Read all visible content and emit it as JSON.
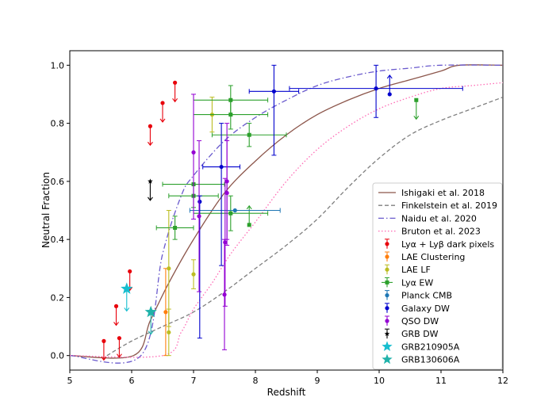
{
  "chart_data": {
    "type": "scatter",
    "title": "",
    "xlabel": "Redshift",
    "ylabel": "Neutral Fraction",
    "xlim": [
      5,
      12
    ],
    "ylim": [
      -0.05,
      1.05
    ],
    "xticks": [
      "5",
      "6",
      "7",
      "8",
      "9",
      "10",
      "11",
      "12"
    ],
    "yticks": [
      "0.0",
      "0.2",
      "0.4",
      "0.6",
      "0.8",
      "1.0"
    ],
    "grid": false,
    "legend_position": "lower-right",
    "model_lines": [
      {
        "name": "Ishigaki et al. 2018",
        "color": "#8c564b",
        "dash": "solid",
        "points": [
          [
            5,
            0
          ],
          [
            6.03,
            0
          ],
          [
            6.3,
            0.12
          ],
          [
            6.6,
            0.25
          ],
          [
            7,
            0.4
          ],
          [
            7.5,
            0.56
          ],
          [
            8,
            0.67
          ],
          [
            8.5,
            0.76
          ],
          [
            9,
            0.83
          ],
          [
            9.5,
            0.88
          ],
          [
            10,
            0.92
          ],
          [
            10.5,
            0.95
          ],
          [
            11,
            0.98
          ],
          [
            11.3,
            1.0
          ],
          [
            12,
            1.0
          ]
        ]
      },
      {
        "name": "Finkelstein et al. 2019",
        "color": "#7f7f7f",
        "dash": "dashed",
        "points": [
          [
            5.6,
            0
          ],
          [
            6,
            0.05
          ],
          [
            6.5,
            0.1
          ],
          [
            7,
            0.15
          ],
          [
            7.5,
            0.22
          ],
          [
            8,
            0.3
          ],
          [
            8.5,
            0.38
          ],
          [
            9,
            0.47
          ],
          [
            9.5,
            0.58
          ],
          [
            10,
            0.68
          ],
          [
            10.5,
            0.76
          ],
          [
            11,
            0.81
          ],
          [
            11.5,
            0.85
          ],
          [
            12,
            0.89
          ]
        ]
      },
      {
        "name": "Naidu et al. 2020",
        "color": "#6a5acd",
        "dash": "dashdot",
        "points": [
          [
            5,
            0
          ],
          [
            6.15,
            0
          ],
          [
            6.5,
            0.35
          ],
          [
            6.8,
            0.55
          ],
          [
            7,
            0.62
          ],
          [
            7.5,
            0.74
          ],
          [
            8,
            0.82
          ],
          [
            8.5,
            0.88
          ],
          [
            9,
            0.93
          ],
          [
            9.5,
            0.96
          ],
          [
            10,
            0.98
          ],
          [
            10.5,
            0.99
          ],
          [
            11,
            1.0
          ],
          [
            12,
            1.0
          ]
        ]
      },
      {
        "name": "Bruton et al. 2023",
        "color": "#ff69b4",
        "dash": "dotted",
        "points": [
          [
            5,
            0
          ],
          [
            6.5,
            0
          ],
          [
            6.8,
            0.08
          ],
          [
            7,
            0.16
          ],
          [
            7.3,
            0.25
          ],
          [
            7.6,
            0.35
          ],
          [
            8,
            0.46
          ],
          [
            8.5,
            0.6
          ],
          [
            9,
            0.71
          ],
          [
            9.5,
            0.79
          ],
          [
            10,
            0.85
          ],
          [
            10.5,
            0.89
          ],
          [
            11,
            0.92
          ],
          [
            11.5,
            0.93
          ],
          [
            12,
            0.94
          ]
        ]
      }
    ],
    "series": [
      {
        "name": "Lyα + Lyβ dark pixels",
        "color": "#e8000b",
        "marker": "dot",
        "points": [
          {
            "x": 5.55,
            "y": 0.05,
            "upper": true
          },
          {
            "x": 5.75,
            "y": 0.17,
            "upper": true
          },
          {
            "x": 5.8,
            "y": 0.06,
            "upper": true
          },
          {
            "x": 5.97,
            "y": 0.29,
            "upper": true
          },
          {
            "x": 6.3,
            "y": 0.79,
            "upper": true
          },
          {
            "x": 6.5,
            "y": 0.87,
            "upper": true
          },
          {
            "x": 6.7,
            "y": 0.94,
            "upper": true
          }
        ]
      },
      {
        "name": "LAE Clustering",
        "color": "#ff7f0e",
        "marker": "dot",
        "points": [
          {
            "x": 6.55,
            "y": 0.15,
            "yerr": [
              0.15,
              0.15
            ]
          }
        ]
      },
      {
        "name": "LAE LF",
        "color": "#bcbd22",
        "marker": "dot",
        "points": [
          {
            "x": 6.6,
            "y": 0.08,
            "yerr": [
              0.08,
              0.08
            ]
          },
          {
            "x": 6.6,
            "y": 0.3,
            "yerr": [
              0.2,
              0.2
            ]
          },
          {
            "x": 7.0,
            "y": 0.28,
            "yerr": [
              0.05,
              0.05
            ]
          },
          {
            "x": 7.3,
            "y": 0.83,
            "yerr": [
              0.06,
              0.06
            ]
          }
        ]
      },
      {
        "name": "Lyα EW",
        "color": "#2ca02c",
        "marker": "square",
        "points": [
          {
            "x": 6.7,
            "y": 0.44,
            "xerr": [
              0.3,
              0.3
            ],
            "yerr": [
              0.04,
              0.04
            ]
          },
          {
            "x": 7.0,
            "y": 0.55,
            "xerr": [
              0.4,
              0.4
            ],
            "yerr": [
              0.04,
              0.04
            ]
          },
          {
            "x": 7.0,
            "y": 0.59,
            "xerr": [
              0.5,
              0.5
            ]
          },
          {
            "x": 7.6,
            "y": 0.49,
            "xerr": [
              0.6,
              0.6
            ],
            "yerr": [
              0.06,
              0.06
            ]
          },
          {
            "x": 7.6,
            "y": 0.83,
            "xerr": [
              0.6,
              0.6
            ],
            "yerr": [
              0.05,
              0.05
            ]
          },
          {
            "x": 7.6,
            "y": 0.88,
            "xerr": [
              0.6,
              0.6
            ],
            "yerr": [
              0.05,
              0.05
            ]
          },
          {
            "x": 7.9,
            "y": 0.76,
            "xerr": [
              0.6,
              0.6
            ],
            "yerr": [
              0.04,
              0.04
            ]
          },
          {
            "x": 7.9,
            "y": 0.45,
            "lower": true
          },
          {
            "x": 10.6,
            "y": 0.88,
            "upper": true
          }
        ]
      },
      {
        "name": "Planck CMB",
        "color": "#1f77b4",
        "marker": "dot",
        "points": [
          {
            "x": 7.67,
            "y": 0.5,
            "xerr": [
              0.73,
              0.73
            ]
          }
        ]
      },
      {
        "name": "Galaxy DW",
        "color": "#0000cd",
        "marker": "dot",
        "points": [
          {
            "x": 7.1,
            "y": 0.53,
            "yerr": [
              0.47,
              0.02
            ]
          },
          {
            "x": 7.45,
            "y": 0.65,
            "xerr": [
              0.3,
              0.3
            ],
            "yerr": [
              0.34,
              0.15
            ]
          },
          {
            "x": 8.3,
            "y": 0.91,
            "xerr": [
              0.4,
              0.4
            ],
            "yerr": [
              0.22,
              0.09
            ]
          },
          {
            "x": 9.95,
            "y": 0.92,
            "xerr": [
              1.4,
              1.4
            ],
            "yerr": [
              0.1,
              0.08
            ]
          },
          {
            "x": 10.17,
            "y": 0.9,
            "lower": true
          }
        ]
      },
      {
        "name": "QSO DW",
        "color": "#9400d3",
        "marker": "dot",
        "points": [
          {
            "x": 7.0,
            "y": 0.7,
            "yerr": [
              0.23,
              0.2
            ]
          },
          {
            "x": 7.09,
            "y": 0.48,
            "yerr": [
              0.26,
              0.26
            ]
          },
          {
            "x": 7.5,
            "y": 0.21,
            "yerr": [
              0.19,
              0.19
            ]
          },
          {
            "x": 7.51,
            "y": 0.39,
            "yerr": [
              0.22,
              0.22
            ]
          },
          {
            "x": 7.54,
            "y": 0.56,
            "yerr": [
              0.18,
              0.18
            ]
          },
          {
            "x": 7.54,
            "y": 0.6,
            "yerr": [
              0.2,
              0.2
            ]
          }
        ]
      },
      {
        "name": "GRB DW",
        "color": "#000000",
        "marker": "star-small",
        "points": [
          {
            "x": 6.3,
            "y": 0.6,
            "upper": true
          }
        ]
      },
      {
        "name": "GRB210905A",
        "color": "#17becf",
        "marker": "star",
        "points": [
          {
            "x": 5.92,
            "y": 0.23,
            "upper": true
          }
        ]
      },
      {
        "name": "GRB130606A",
        "color": "#20b2aa",
        "marker": "star",
        "points": [
          {
            "x": 6.31,
            "y": 0.15,
            "upper": true
          }
        ]
      }
    ]
  }
}
